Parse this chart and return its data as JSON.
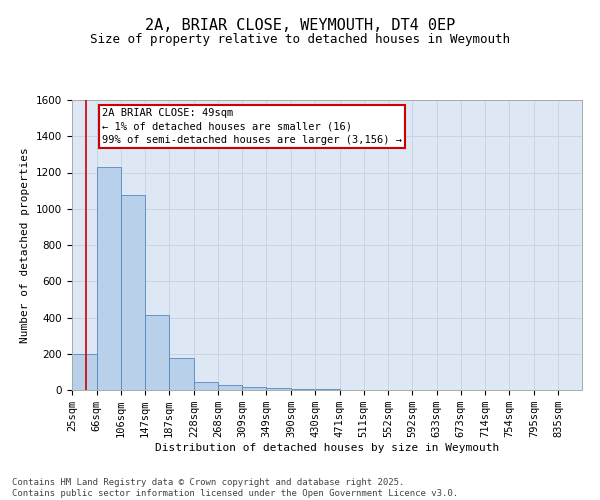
{
  "title_line1": "2A, BRIAR CLOSE, WEYMOUTH, DT4 0EP",
  "title_line2": "Size of property relative to detached houses in Weymouth",
  "xlabel": "Distribution of detached houses by size in Weymouth",
  "ylabel": "Number of detached properties",
  "bin_labels": [
    "25sqm",
    "66sqm",
    "106sqm",
    "147sqm",
    "187sqm",
    "228sqm",
    "268sqm",
    "309sqm",
    "349sqm",
    "390sqm",
    "430sqm",
    "471sqm",
    "511sqm",
    "552sqm",
    "592sqm",
    "633sqm",
    "673sqm",
    "714sqm",
    "754sqm",
    "795sqm",
    "835sqm"
  ],
  "bin_edges": [
    25,
    66,
    106,
    147,
    187,
    228,
    268,
    309,
    349,
    390,
    430,
    471,
    511,
    552,
    592,
    633,
    673,
    714,
    754,
    795,
    835
  ],
  "bar_heights": [
    200,
    1230,
    1075,
    415,
    175,
    45,
    25,
    15,
    10,
    5,
    5,
    0,
    0,
    0,
    0,
    0,
    0,
    0,
    0,
    0,
    0
  ],
  "bar_color": "#b8d0ea",
  "bar_edge_color": "#5588bb",
  "grid_color": "#c8d4e4",
  "background_color": "#dde8f4",
  "figure_background": "#ffffff",
  "ylim": [
    0,
    1600
  ],
  "yticks": [
    0,
    200,
    400,
    600,
    800,
    1000,
    1200,
    1400,
    1600
  ],
  "property_line_x": 49,
  "annotation_text": "2A BRIAR CLOSE: 49sqm\n← 1% of detached houses are smaller (16)\n99% of semi-detached houses are larger (3,156) →",
  "annotation_box_color": "#ffffff",
  "annotation_border_color": "#cc0000",
  "property_line_color": "#cc0000",
  "footer_line1": "Contains HM Land Registry data © Crown copyright and database right 2025.",
  "footer_line2": "Contains public sector information licensed under the Open Government Licence v3.0.",
  "title_fontsize": 11,
  "subtitle_fontsize": 9,
  "axis_label_fontsize": 8,
  "tick_fontsize": 7.5,
  "annotation_fontsize": 7.5,
  "footer_fontsize": 6.5
}
